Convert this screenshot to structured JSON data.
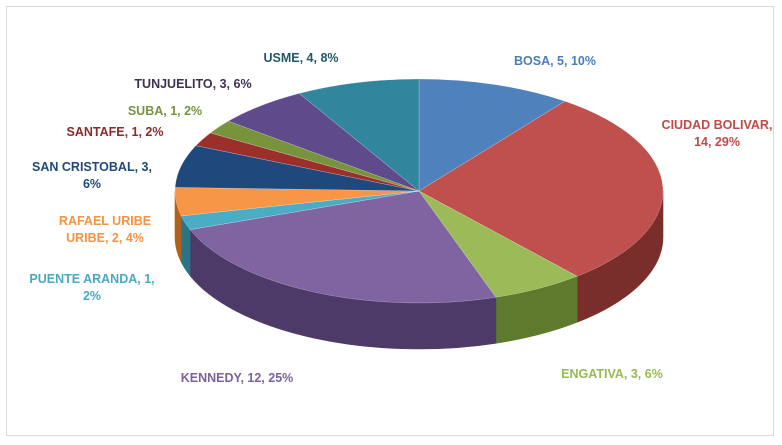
{
  "chart_data": {
    "type": "pie",
    "title": "",
    "slices": [
      {
        "name": "BOSA",
        "value": 5,
        "percent": "10%",
        "label_lines": [
          "BOSA, 5, 10%"
        ],
        "color": "#4F81BD",
        "dark": "#2E5A8C",
        "label_color": "#4A7EBB"
      },
      {
        "name": "CIUDAD BOLIVAR",
        "value": 14,
        "percent": "29%",
        "label_lines": [
          "CIUDAD BOLIVAR,",
          "14, 29%"
        ],
        "color": "#C0504D",
        "dark": "#7A2E2C",
        "label_color": "#BE4B48"
      },
      {
        "name": "ENGATIVA",
        "value": 3,
        "percent": "6%",
        "label_lines": [
          "ENGATIVA, 3, 6%"
        ],
        "color": "#9BBB59",
        "dark": "#5E7A2C",
        "label_color": "#98B954"
      },
      {
        "name": "KENNEDY",
        "value": 12,
        "percent": "25%",
        "label_lines": [
          "KENNEDY, 12, 25%"
        ],
        "color": "#8064A2",
        "dark": "#4E3A68",
        "label_color": "#7D60A0"
      },
      {
        "name": "PUENTE ARANDA",
        "value": 1,
        "percent": "2%",
        "label_lines": [
          "PUENTE ARANDA, 1,",
          "2%"
        ],
        "color": "#4BACC6",
        "dark": "#2B7487",
        "label_color": "#46AAC5"
      },
      {
        "name": "RAFAEL URIBE URIBE",
        "value": 2,
        "percent": "4%",
        "label_lines": [
          "RAFAEL URIBE",
          "URIBE, 2, 4%"
        ],
        "color": "#F79646",
        "dark": "#B0621C",
        "label_color": "#F69240"
      },
      {
        "name": "SAN CRISTOBAL",
        "value": 3,
        "percent": "6%",
        "label_lines": [
          "SAN CRISTOBAL, 3,",
          "6%"
        ],
        "color": "#1F497D",
        "dark": "#112A4A",
        "label_color": "#1F497D"
      },
      {
        "name": "SANTAFE",
        "value": 1,
        "percent": "2%",
        "label_lines": [
          "SANTAFE, 1, 2%"
        ],
        "color": "#9A2F2B",
        "dark": "#5C1A18",
        "label_color": "#8E2A27"
      },
      {
        "name": "SUBA",
        "value": 1,
        "percent": "2%",
        "label_lines": [
          "SUBA, 1, 2%"
        ],
        "color": "#77933C",
        "dark": "#475A20",
        "label_color": "#77933C"
      },
      {
        "name": "TUNJUELITO",
        "value": 3,
        "percent": "6%",
        "label_lines": [
          "TUNJUELITO, 3, 6%"
        ],
        "color": "#5F4B8B",
        "dark": "#372B52",
        "label_color": "#3F3151"
      },
      {
        "name": "USME",
        "value": 4,
        "percent": "8%",
        "label_lines": [
          "USME, 4, 8%"
        ],
        "color": "#31859C",
        "dark": "#1B4F5E",
        "label_color": "#215968"
      }
    ]
  }
}
